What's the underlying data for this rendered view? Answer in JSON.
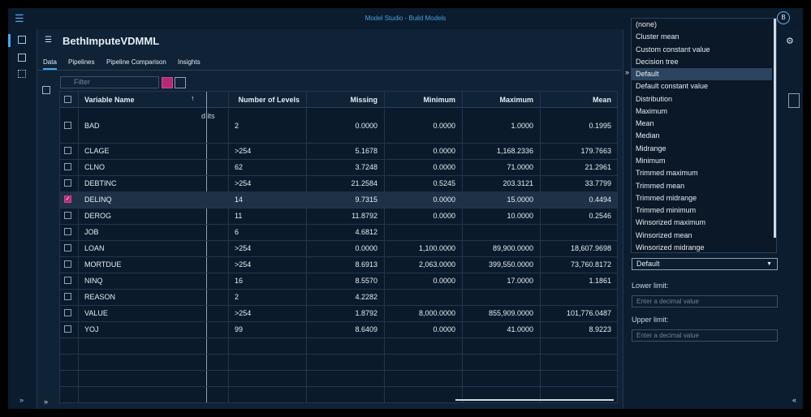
{
  "header": {
    "title": "Model Studio - Build Models",
    "user_initial": "B"
  },
  "project": {
    "name": "BethImputeVDMML",
    "tabs": [
      "Data",
      "Pipelines",
      "Pipeline Comparison",
      "Insights"
    ],
    "active_tab": 0
  },
  "filter": {
    "placeholder": "Filter"
  },
  "table": {
    "columns": [
      "Variable Name",
      "Number of Levels",
      "Missing",
      "Minimum",
      "Maximum",
      "Mean"
    ],
    "overflow_text": "d its",
    "checked_row": 4,
    "rows": [
      [
        "BAD",
        "2",
        "0.0000",
        "0.0000",
        "1.0000",
        "0.1995"
      ],
      [
        "CLAGE",
        ">254",
        "5.1678",
        "0.0000",
        "1,168.2336",
        "179.7663"
      ],
      [
        "CLNO",
        "62",
        "3.7248",
        "0.0000",
        "71.0000",
        "21.2961"
      ],
      [
        "DEBTINC",
        ">254",
        "21.2584",
        "0.5245",
        "203.3121",
        "33.7799"
      ],
      [
        "DELINQ",
        "14",
        "9.7315",
        "0.0000",
        "15.0000",
        "0.4494"
      ],
      [
        "DEROG",
        "11",
        "11.8792",
        "0.0000",
        "10.0000",
        "0.2546"
      ],
      [
        "JOB",
        "6",
        "4.6812",
        null,
        null,
        null
      ],
      [
        "LOAN",
        ">254",
        "0.0000",
        "1,100.0000",
        "89,900.0000",
        "18,607.9698"
      ],
      [
        "MORTDUE",
        ">254",
        "8.6913",
        "2,063.0000",
        "399,550.0000",
        "73,760.8172"
      ],
      [
        "NINQ",
        "16",
        "8.5570",
        "0.0000",
        "17.0000",
        "1.1861"
      ],
      [
        "REASON",
        "2",
        "4.2282",
        null,
        null,
        null
      ],
      [
        "VALUE",
        ">254",
        "1.8792",
        "8,000.0000",
        "855,909.0000",
        "101,776.0487"
      ],
      [
        "YOJ",
        "99",
        "8.6409",
        "0.0000",
        "41.0000",
        "8.9223"
      ]
    ]
  },
  "panel": {
    "options": [
      "(none)",
      "Cluster mean",
      "Custom constant value",
      "Decision tree",
      "Default",
      "Default constant value",
      "Distribution",
      "Maximum",
      "Mean",
      "Median",
      "Midrange",
      "Minimum",
      "Trimmed maximum",
      "Trimmed mean",
      "Trimmed midrange",
      "Trimmed minimum",
      "Winsorized maximum",
      "Winsorized mean",
      "Winsorized midrange"
    ],
    "highlighted_option": 4,
    "selected": "Default",
    "lower_limit": {
      "label": "Lower limit:",
      "placeholder": "Enter a decimal value"
    },
    "upper_limit": {
      "label": "Upper limit:",
      "placeholder": "Enter a decimal value"
    }
  }
}
